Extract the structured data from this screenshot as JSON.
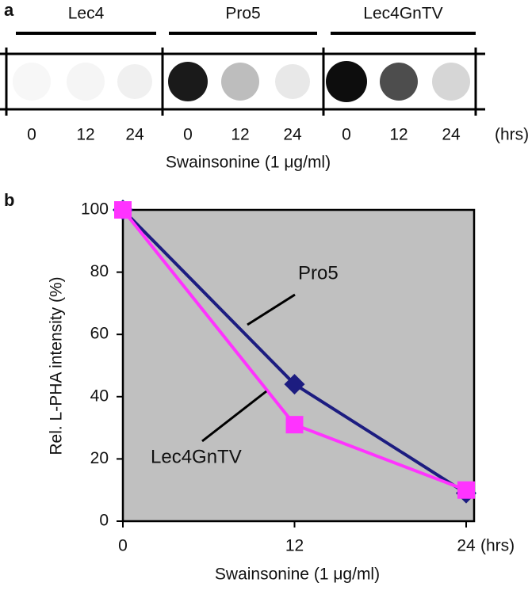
{
  "panel_a": {
    "label": "a",
    "groups": [
      "Lec4",
      "Pro5",
      "Lec4GnTV"
    ],
    "times": [
      0,
      12,
      24
    ],
    "time_unit": "(hrs)",
    "xlabel": "Swainsonine (1 μg/ml)"
  },
  "chart_data": {
    "type": "line",
    "panel_label": "b",
    "x": [
      0,
      12,
      24
    ],
    "xlim": [
      0,
      24
    ],
    "xticks": [
      0,
      12,
      24
    ],
    "x_unit": "(hrs)",
    "ylim": [
      0,
      100
    ],
    "yticks": [
      0,
      20,
      40,
      60,
      80,
      100
    ],
    "xlabel": "Swainsonine (1 μg/ml)",
    "ylabel": "Rel. L-PHA intensity (%)",
    "background": "#c0c0c0",
    "series": [
      {
        "name": "Pro5",
        "color": "#1c1c80",
        "marker": "diamond",
        "values": [
          100,
          44,
          9
        ]
      },
      {
        "name": "Lec4GnTV",
        "color": "#ff33ff",
        "marker": "square",
        "values": [
          100,
          31,
          10
        ]
      }
    ]
  }
}
